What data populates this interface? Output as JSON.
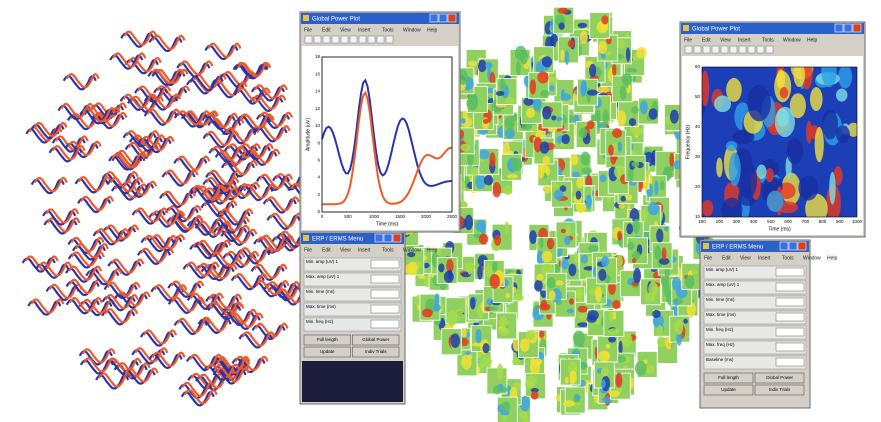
{
  "plot_window": {
    "title": "Global Power Plot",
    "menu": [
      "File",
      "Edit",
      "View",
      "Insert",
      "Tools",
      "Window",
      "Help"
    ],
    "x_axis_label": "Time (ms)",
    "y_axis_label": "Amplitude (uV)",
    "x_ticks": [
      "0",
      "500",
      "1000",
      "1500",
      "2000",
      "2500"
    ],
    "y_ticks": [
      "0",
      "2",
      "4",
      "6",
      "8",
      "10",
      "12",
      "14",
      "16",
      "18"
    ]
  },
  "tf_window": {
    "title": "Global Power Plot",
    "menu": [
      "File",
      "Edit",
      "View",
      "Insert",
      "Tools",
      "Window",
      "Help"
    ],
    "x_axis_label": "Time (ms)",
    "y_axis_label": "Frequency (Hz)",
    "x_ticks": [
      "100",
      "200",
      "300",
      "400",
      "500",
      "600",
      "700",
      "800",
      "900",
      "1000"
    ],
    "y_ticks": [
      "10",
      "20",
      "30",
      "40",
      "50",
      "60"
    ]
  },
  "menu_left": {
    "title": "ERP / ERMS Menu",
    "menu": [
      "File",
      "Edit",
      "View",
      "Insert",
      "Tools",
      "Window",
      "Help"
    ],
    "fields": [
      "Min. amp (uV) 1",
      "Max. amp (uV) 1",
      "Min. time (ms)",
      "Max. time (ms)",
      "Min. freq (Hz)"
    ],
    "buttons": [
      "Full length",
      "Global Power",
      "Update",
      "Indiv Trials"
    ]
  },
  "menu_right": {
    "title": "ERP / ERMS Menu",
    "menu": [
      "File",
      "Edit",
      "View",
      "Insert",
      "Tools",
      "Window",
      "Help"
    ],
    "fields": [
      "Min. amp (uV) 1",
      "Max. amp (uV) 1",
      "Min. time (ms)",
      "Max. time (ms)",
      "Min. freq (Hz)",
      "Max. freq (Hz)",
      "Baseline (ms)"
    ],
    "buttons": [
      "Full length",
      "Global Power",
      "Update",
      "Indiv Trials"
    ]
  }
}
